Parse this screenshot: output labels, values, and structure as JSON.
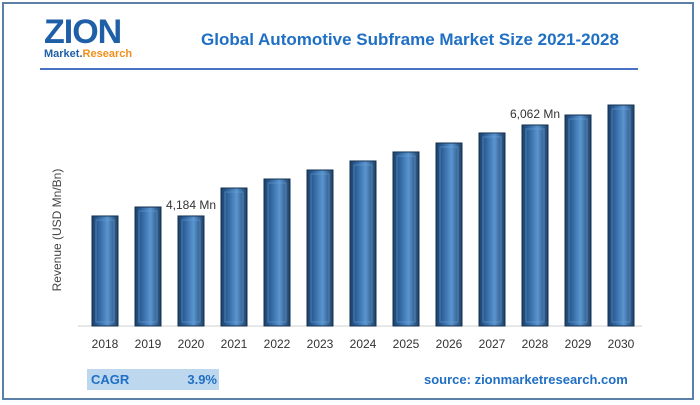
{
  "logo": {
    "brand": "ZION",
    "sub_a": "Market.",
    "sub_b": "Research"
  },
  "chart_data": {
    "type": "bar",
    "title": "Global Automotive Subframe Market Size 2021-2028",
    "xlabel": "",
    "ylabel": "Revenue (USD Mn/Bn)",
    "categories": [
      "2018",
      "2019",
      "2020",
      "2021",
      "2022",
      "2023",
      "2024",
      "2025",
      "2026",
      "2027",
      "2028",
      "2029",
      "2030"
    ],
    "values": [
      4184,
      4369,
      4184,
      4761,
      4947,
      5133,
      5319,
      5505,
      5690,
      5897,
      6062,
      6268,
      6474
    ],
    "ylim": [
      1913,
      7000
    ],
    "grid": false,
    "data_labels": [
      {
        "category": "2020",
        "text": "4,184 Mn"
      },
      {
        "category": "2028",
        "text": "6,062 Mn"
      }
    ],
    "bar_color": "#2e5f95"
  },
  "footer": {
    "cagr_label": "CAGR",
    "cagr_value": "3.9%",
    "source": "source: zionmarketresearch.com"
  }
}
